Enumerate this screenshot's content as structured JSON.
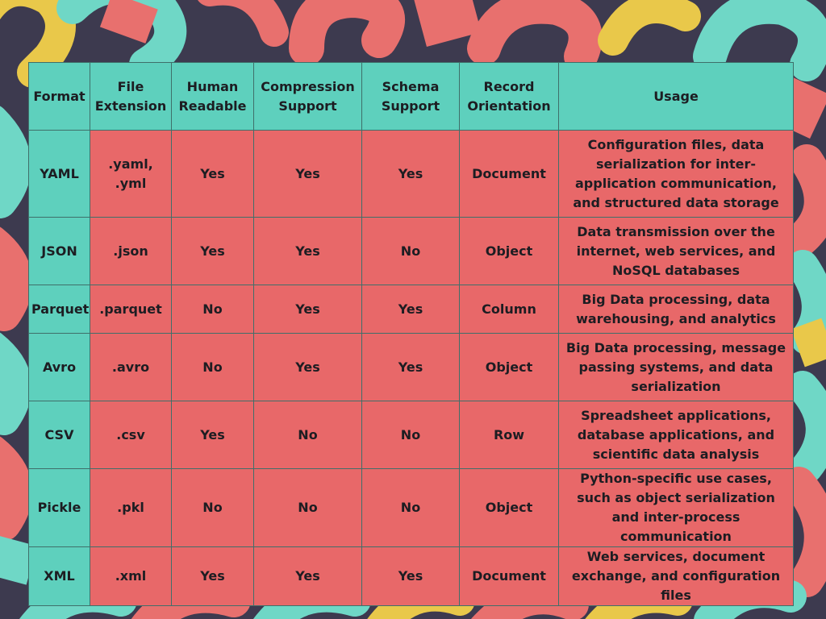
{
  "table": {
    "headers": [
      "Format",
      "File Extension",
      "Human Readable",
      "Compression Support",
      "Schema Support",
      "Record Orientation",
      "Usage"
    ],
    "rows": [
      [
        "YAML",
        ".yaml, .yml",
        "Yes",
        "Yes",
        "Yes",
        "Document",
        "Configuration files, data serialization for inter-application communication, and structured data storage"
      ],
      [
        "JSON",
        ".json",
        "Yes",
        "Yes",
        "No",
        "Object",
        "Data transmission over the internet, web services, and NoSQL databases"
      ],
      [
        "Parquet",
        ".parquet",
        "No",
        "Yes",
        "Yes",
        "Column",
        "Big Data processing, data warehousing, and analytics"
      ],
      [
        "Avro",
        ".avro",
        "No",
        "Yes",
        "Yes",
        "Object",
        "Big Data processing, message passing systems, and data serialization"
      ],
      [
        "CSV",
        ".csv",
        "Yes",
        "No",
        "No",
        "Row",
        "Spreadsheet applications, database applications, and scientific data analysis"
      ],
      [
        "Pickle",
        ".pkl",
        "No",
        "No",
        "No",
        "Object",
        "Python-specific use cases, such as object serialization and inter-process communication"
      ],
      [
        "XML",
        ".xml",
        "Yes",
        "Yes",
        "Yes",
        "Document",
        "Web services, document exchange, and configuration files"
      ]
    ]
  },
  "colors": {
    "header_bg": "#5ed0bd",
    "cell_bg": "#e86869",
    "text": "#1d1d22",
    "border": "#3f6f6a",
    "background": "#3d3a4f"
  }
}
